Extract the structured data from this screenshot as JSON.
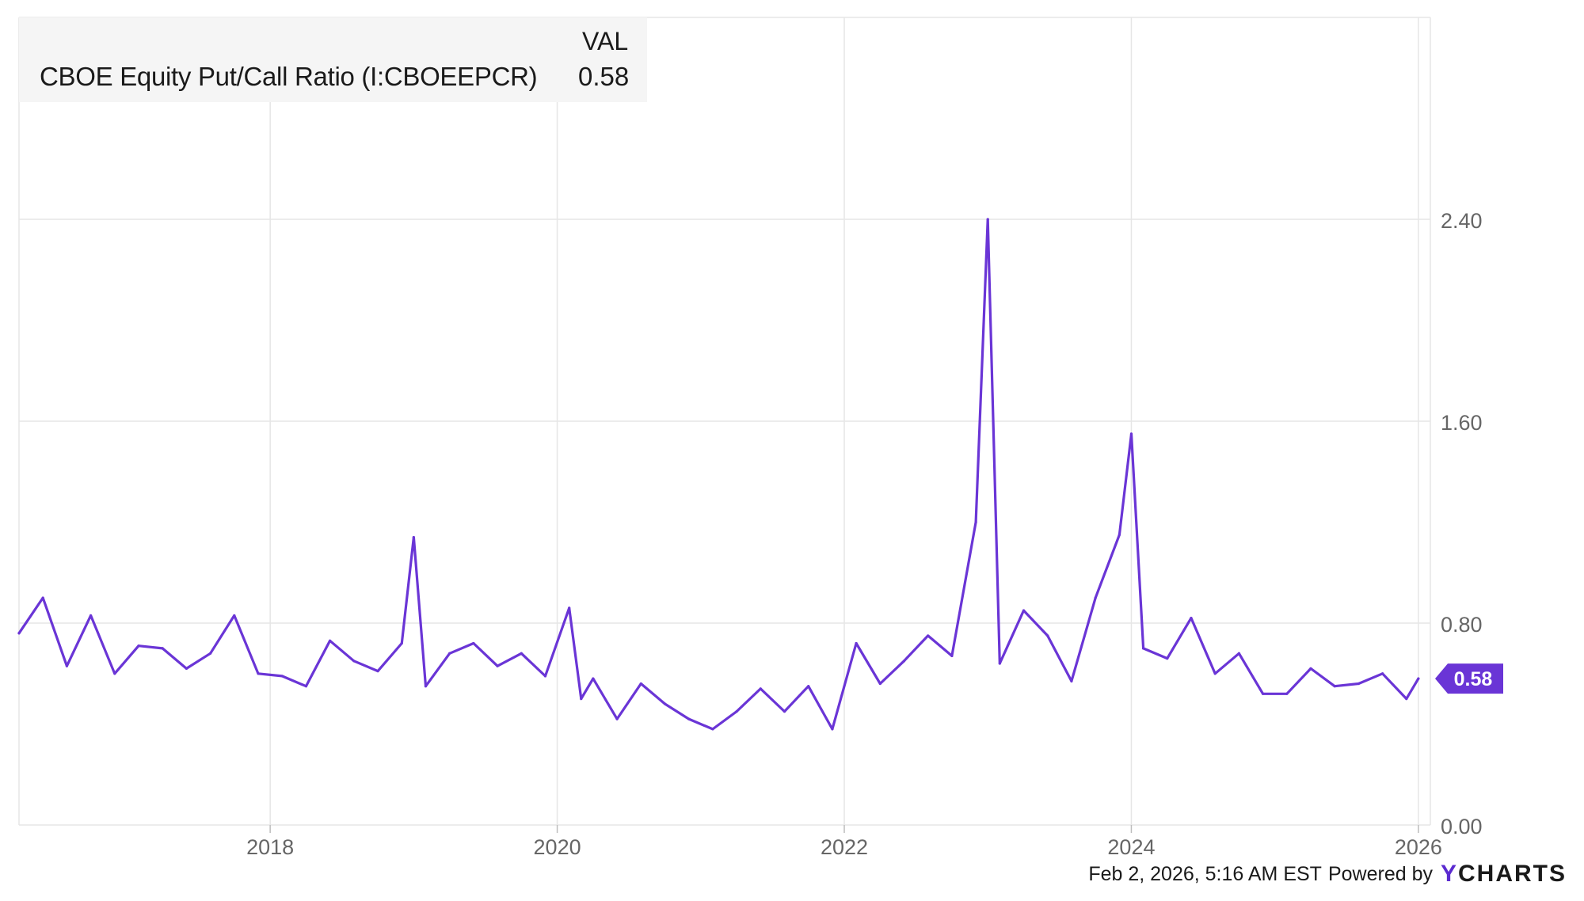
{
  "legend": {
    "header": "VAL",
    "series_name": "CBOE Equity Put/Call Ratio (I:CBOEEPCR)",
    "series_value": "0.58"
  },
  "footer": {
    "timestamp": "Feb 2, 2026, 5:16 AM EST",
    "powered_by": "Powered by",
    "brand_mark": "Y",
    "brand_rest": "CHARTS"
  },
  "colors": {
    "series": "#6a35d6",
    "grid": "#e6e6e6",
    "axis_text": "#666666"
  },
  "chart_data": {
    "type": "line",
    "title": "",
    "xlabel": "",
    "ylabel": "",
    "x_ticks": [
      "2018",
      "2020",
      "2022",
      "2024",
      "2026"
    ],
    "y_ticks": [
      "0.00",
      "0.80",
      "1.60",
      "2.40"
    ],
    "xlim": [
      "2016-04",
      "2026-02"
    ],
    "ylim": [
      0,
      3.2
    ],
    "grid": true,
    "y_axis_side": "right",
    "last_value_label": "0.58",
    "series": [
      {
        "name": "CBOE Equity Put/Call Ratio (I:CBOEEPCR)",
        "x": [
          "2016-04",
          "2016-06",
          "2016-08",
          "2016-10",
          "2016-12",
          "2017-02",
          "2017-04",
          "2017-06",
          "2017-08",
          "2017-10",
          "2017-12",
          "2018-02",
          "2018-04",
          "2018-06",
          "2018-08",
          "2018-10",
          "2018-12",
          "2019-01",
          "2019-02",
          "2019-04",
          "2019-06",
          "2019-08",
          "2019-10",
          "2019-12",
          "2020-02",
          "2020-03",
          "2020-04",
          "2020-06",
          "2020-08",
          "2020-10",
          "2020-12",
          "2021-02",
          "2021-04",
          "2021-06",
          "2021-08",
          "2021-10",
          "2021-12",
          "2022-02",
          "2022-04",
          "2022-06",
          "2022-08",
          "2022-10",
          "2022-12",
          "2023-01",
          "2023-02",
          "2023-04",
          "2023-06",
          "2023-08",
          "2023-10",
          "2023-12",
          "2024-01",
          "2024-02",
          "2024-04",
          "2024-06",
          "2024-08",
          "2024-10",
          "2024-12",
          "2025-02",
          "2025-04",
          "2025-06",
          "2025-08",
          "2025-10",
          "2025-12",
          "2026-01"
        ],
        "y": [
          0.76,
          0.9,
          0.63,
          0.83,
          0.6,
          0.71,
          0.7,
          0.62,
          0.68,
          0.83,
          0.6,
          0.59,
          0.55,
          0.73,
          0.65,
          0.61,
          0.72,
          1.14,
          0.55,
          0.68,
          0.72,
          0.63,
          0.68,
          0.59,
          0.86,
          0.5,
          0.58,
          0.42,
          0.56,
          0.48,
          0.42,
          0.38,
          0.45,
          0.54,
          0.45,
          0.55,
          0.38,
          0.72,
          0.56,
          0.65,
          0.75,
          0.67,
          1.2,
          2.4,
          0.64,
          0.85,
          0.75,
          0.57,
          0.9,
          1.15,
          1.55,
          0.7,
          0.66,
          0.82,
          0.6,
          0.68,
          0.52,
          0.52,
          0.62,
          0.55,
          0.56,
          0.6,
          0.5,
          0.58
        ]
      }
    ]
  }
}
